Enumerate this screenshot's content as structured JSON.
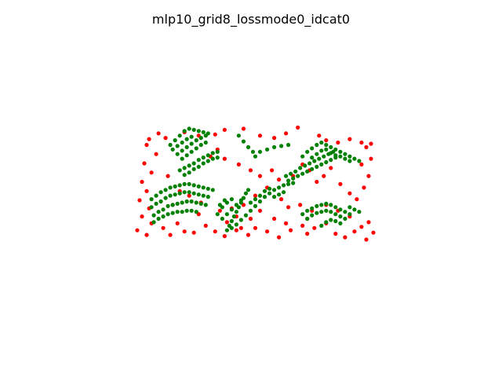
{
  "chart_data": {
    "type": "scatter",
    "title": "mlp10_grid8_lossmode0_idcat0",
    "xlabel": "",
    "ylabel": "",
    "axes_visible": false,
    "grid": false,
    "legend": "none",
    "xlim": [
      0,
      1
    ],
    "ylim": [
      0,
      1
    ],
    "series": [
      {
        "color": "#ff0000",
        "marker": "circle",
        "points": [
          [
            0.09,
            0.92
          ],
          [
            0.12,
            0.88
          ],
          [
            0.2,
            0.93
          ],
          [
            0.26,
            0.9
          ],
          [
            0.33,
            0.91
          ],
          [
            0.37,
            0.95
          ],
          [
            0.45,
            0.96
          ],
          [
            0.52,
            0.9
          ],
          [
            0.58,
            0.88
          ],
          [
            0.63,
            0.92
          ],
          [
            0.68,
            0.97
          ],
          [
            0.77,
            0.9
          ],
          [
            0.8,
            0.86
          ],
          [
            0.85,
            0.84
          ],
          [
            0.9,
            0.87
          ],
          [
            0.95,
            0.84
          ],
          [
            0.99,
            0.83
          ],
          [
            0.97,
            0.8
          ],
          [
            0.05,
            0.87
          ],
          [
            0.04,
            0.82
          ],
          [
            0.08,
            0.74
          ],
          [
            0.03,
            0.66
          ],
          [
            0.06,
            0.58
          ],
          [
            0.02,
            0.5
          ],
          [
            0.04,
            0.42
          ],
          [
            0.01,
            0.34
          ],
          [
            0.05,
            0.27
          ],
          [
            0.02,
            0.2
          ],
          [
            0.06,
            0.14
          ],
          [
            0.0,
            0.08
          ],
          [
            0.04,
            0.04
          ],
          [
            0.13,
            0.55
          ],
          [
            0.11,
            0.1
          ],
          [
            0.14,
            0.04
          ],
          [
            0.2,
            0.07
          ],
          [
            0.24,
            0.06
          ],
          [
            0.29,
            0.12
          ],
          [
            0.33,
            0.07
          ],
          [
            0.37,
            0.03
          ],
          [
            0.42,
            0.08
          ],
          [
            0.47,
            0.04
          ],
          [
            0.5,
            0.1
          ],
          [
            0.55,
            0.07
          ],
          [
            0.6,
            0.02
          ],
          [
            0.65,
            0.08
          ],
          [
            0.7,
            0.12
          ],
          [
            0.72,
            0.05
          ],
          [
            0.75,
            0.1
          ],
          [
            0.8,
            0.14
          ],
          [
            0.84,
            0.05
          ],
          [
            0.88,
            0.02
          ],
          [
            0.92,
            0.07
          ],
          [
            0.95,
            0.11
          ],
          [
            0.98,
            0.15
          ],
          [
            0.97,
            0.0
          ],
          [
            1.0,
            0.06
          ],
          [
            0.31,
            0.72
          ],
          [
            0.34,
            0.78
          ],
          [
            0.37,
            0.7
          ],
          [
            0.43,
            0.65
          ],
          [
            0.48,
            0.6
          ],
          [
            0.52,
            0.55
          ],
          [
            0.55,
            0.45
          ],
          [
            0.5,
            0.38
          ],
          [
            0.45,
            0.3
          ],
          [
            0.4,
            0.27
          ],
          [
            0.42,
            0.2
          ],
          [
            0.38,
            0.15
          ],
          [
            0.44,
            0.1
          ],
          [
            0.57,
            0.6
          ],
          [
            0.6,
            0.52
          ],
          [
            0.66,
            0.55
          ],
          [
            0.7,
            0.65
          ],
          [
            0.73,
            0.6
          ],
          [
            0.76,
            0.5
          ],
          [
            0.79,
            0.55
          ],
          [
            0.82,
            0.62
          ],
          [
            0.86,
            0.48
          ],
          [
            0.9,
            0.4
          ],
          [
            0.93,
            0.35
          ],
          [
            0.96,
            0.45
          ],
          [
            0.98,
            0.55
          ],
          [
            0.95,
            0.65
          ],
          [
            0.99,
            0.7
          ],
          [
            0.18,
            0.42
          ],
          [
            0.22,
            0.38
          ],
          [
            0.27,
            0.32
          ],
          [
            0.15,
            0.3
          ],
          [
            0.61,
            0.35
          ],
          [
            0.64,
            0.28
          ],
          [
            0.69,
            0.3
          ],
          [
            0.74,
            0.25
          ],
          [
            0.8,
            0.3
          ],
          [
            0.85,
            0.25
          ],
          [
            0.9,
            0.2
          ],
          [
            0.17,
            0.14
          ],
          [
            0.26,
            0.22
          ],
          [
            0.35,
            0.25
          ],
          [
            0.48,
            0.18
          ],
          [
            0.52,
            0.25
          ],
          [
            0.58,
            0.18
          ],
          [
            0.63,
            0.14
          ],
          [
            0.72,
            0.18
          ]
        ]
      },
      {
        "color": "#008000",
        "marker": "circle",
        "points": [
          [
            0.14,
            0.82
          ],
          [
            0.16,
            0.86
          ],
          [
            0.18,
            0.9
          ],
          [
            0.2,
            0.94
          ],
          [
            0.22,
            0.96
          ],
          [
            0.24,
            0.95
          ],
          [
            0.26,
            0.94
          ],
          [
            0.28,
            0.93
          ],
          [
            0.3,
            0.92
          ],
          [
            0.15,
            0.78
          ],
          [
            0.17,
            0.81
          ],
          [
            0.19,
            0.84
          ],
          [
            0.21,
            0.87
          ],
          [
            0.23,
            0.89
          ],
          [
            0.17,
            0.74
          ],
          [
            0.19,
            0.77
          ],
          [
            0.21,
            0.8
          ],
          [
            0.23,
            0.83
          ],
          [
            0.25,
            0.86
          ],
          [
            0.27,
            0.88
          ],
          [
            0.29,
            0.9
          ],
          [
            0.19,
            0.7
          ],
          [
            0.21,
            0.73
          ],
          [
            0.23,
            0.76
          ],
          [
            0.25,
            0.79
          ],
          [
            0.27,
            0.82
          ],
          [
            0.29,
            0.84
          ],
          [
            0.18,
            0.6
          ],
          [
            0.2,
            0.62
          ],
          [
            0.22,
            0.64
          ],
          [
            0.24,
            0.66
          ],
          [
            0.26,
            0.69
          ],
          [
            0.28,
            0.71
          ],
          [
            0.3,
            0.73
          ],
          [
            0.32,
            0.75
          ],
          [
            0.34,
            0.76
          ],
          [
            0.2,
            0.56
          ],
          [
            0.22,
            0.58
          ],
          [
            0.24,
            0.61
          ],
          [
            0.26,
            0.63
          ],
          [
            0.28,
            0.66
          ],
          [
            0.3,
            0.68
          ],
          [
            0.32,
            0.7
          ],
          [
            0.34,
            0.71
          ],
          [
            0.43,
            0.9
          ],
          [
            0.45,
            0.85
          ],
          [
            0.47,
            0.8
          ],
          [
            0.49,
            0.76
          ],
          [
            0.5,
            0.72
          ],
          [
            0.52,
            0.76
          ],
          [
            0.55,
            0.78
          ],
          [
            0.58,
            0.8
          ],
          [
            0.61,
            0.81
          ],
          [
            0.64,
            0.82
          ],
          [
            0.06,
            0.35
          ],
          [
            0.08,
            0.38
          ],
          [
            0.1,
            0.41
          ],
          [
            0.12,
            0.43
          ],
          [
            0.14,
            0.45
          ],
          [
            0.16,
            0.46
          ],
          [
            0.18,
            0.47
          ],
          [
            0.2,
            0.48
          ],
          [
            0.22,
            0.48
          ],
          [
            0.24,
            0.47
          ],
          [
            0.26,
            0.46
          ],
          [
            0.28,
            0.45
          ],
          [
            0.3,
            0.44
          ],
          [
            0.32,
            0.43
          ],
          [
            0.06,
            0.28
          ],
          [
            0.08,
            0.31
          ],
          [
            0.1,
            0.33
          ],
          [
            0.12,
            0.36
          ],
          [
            0.14,
            0.38
          ],
          [
            0.16,
            0.39
          ],
          [
            0.18,
            0.4
          ],
          [
            0.2,
            0.41
          ],
          [
            0.22,
            0.41
          ],
          [
            0.24,
            0.4
          ],
          [
            0.26,
            0.39
          ],
          [
            0.28,
            0.38
          ],
          [
            0.3,
            0.37
          ],
          [
            0.07,
            0.21
          ],
          [
            0.09,
            0.24
          ],
          [
            0.11,
            0.26
          ],
          [
            0.13,
            0.29
          ],
          [
            0.15,
            0.3
          ],
          [
            0.17,
            0.31
          ],
          [
            0.19,
            0.32
          ],
          [
            0.21,
            0.33
          ],
          [
            0.23,
            0.33
          ],
          [
            0.25,
            0.32
          ],
          [
            0.27,
            0.31
          ],
          [
            0.29,
            0.3
          ],
          [
            0.07,
            0.15
          ],
          [
            0.09,
            0.18
          ],
          [
            0.11,
            0.2
          ],
          [
            0.13,
            0.22
          ],
          [
            0.15,
            0.23
          ],
          [
            0.17,
            0.24
          ],
          [
            0.19,
            0.24
          ],
          [
            0.21,
            0.25
          ],
          [
            0.23,
            0.25
          ],
          [
            0.25,
            0.24
          ],
          [
            0.38,
            0.08
          ],
          [
            0.39,
            0.12
          ],
          [
            0.4,
            0.16
          ],
          [
            0.41,
            0.2
          ],
          [
            0.42,
            0.24
          ],
          [
            0.43,
            0.28
          ],
          [
            0.44,
            0.32
          ],
          [
            0.45,
            0.36
          ],
          [
            0.46,
            0.4
          ],
          [
            0.47,
            0.43
          ],
          [
            0.4,
            0.1
          ],
          [
            0.42,
            0.13
          ],
          [
            0.44,
            0.17
          ],
          [
            0.46,
            0.21
          ],
          [
            0.48,
            0.25
          ],
          [
            0.5,
            0.29
          ],
          [
            0.52,
            0.33
          ],
          [
            0.54,
            0.37
          ],
          [
            0.56,
            0.4
          ],
          [
            0.58,
            0.43
          ],
          [
            0.6,
            0.45
          ],
          [
            0.62,
            0.47
          ],
          [
            0.64,
            0.48
          ],
          [
            0.66,
            0.49
          ],
          [
            0.36,
            0.18
          ],
          [
            0.38,
            0.22
          ],
          [
            0.4,
            0.26
          ],
          [
            0.42,
            0.3
          ],
          [
            0.44,
            0.34
          ],
          [
            0.36,
            0.28
          ],
          [
            0.38,
            0.32
          ],
          [
            0.4,
            0.35
          ],
          [
            0.34,
            0.22
          ],
          [
            0.35,
            0.3
          ],
          [
            0.37,
            0.34
          ],
          [
            0.48,
            0.32
          ],
          [
            0.5,
            0.35
          ],
          [
            0.52,
            0.38
          ],
          [
            0.54,
            0.42
          ],
          [
            0.56,
            0.44
          ],
          [
            0.58,
            0.37
          ],
          [
            0.6,
            0.39
          ],
          [
            0.62,
            0.41
          ],
          [
            0.63,
            0.55
          ],
          [
            0.65,
            0.57
          ],
          [
            0.67,
            0.59
          ],
          [
            0.69,
            0.62
          ],
          [
            0.71,
            0.64
          ],
          [
            0.73,
            0.66
          ],
          [
            0.75,
            0.68
          ],
          [
            0.77,
            0.7
          ],
          [
            0.79,
            0.72
          ],
          [
            0.81,
            0.74
          ],
          [
            0.83,
            0.76
          ],
          [
            0.64,
            0.51
          ],
          [
            0.66,
            0.53
          ],
          [
            0.68,
            0.55
          ],
          [
            0.7,
            0.57
          ],
          [
            0.72,
            0.59
          ],
          [
            0.74,
            0.61
          ],
          [
            0.76,
            0.63
          ],
          [
            0.78,
            0.65
          ],
          [
            0.8,
            0.67
          ],
          [
            0.82,
            0.69
          ],
          [
            0.84,
            0.71
          ],
          [
            0.86,
            0.72
          ],
          [
            0.88,
            0.7
          ],
          [
            0.9,
            0.68
          ],
          [
            0.7,
            0.72
          ],
          [
            0.72,
            0.76
          ],
          [
            0.74,
            0.79
          ],
          [
            0.76,
            0.82
          ],
          [
            0.78,
            0.84
          ],
          [
            0.8,
            0.82
          ],
          [
            0.82,
            0.8
          ],
          [
            0.84,
            0.78
          ],
          [
            0.86,
            0.76
          ],
          [
            0.88,
            0.74
          ],
          [
            0.9,
            0.72
          ],
          [
            0.92,
            0.7
          ],
          [
            0.94,
            0.68
          ],
          [
            0.74,
            0.71
          ],
          [
            0.76,
            0.74
          ],
          [
            0.78,
            0.77
          ],
          [
            0.8,
            0.78
          ],
          [
            0.82,
            0.75
          ],
          [
            0.84,
            0.73
          ],
          [
            0.7,
            0.22
          ],
          [
            0.72,
            0.25
          ],
          [
            0.74,
            0.27
          ],
          [
            0.76,
            0.29
          ],
          [
            0.78,
            0.3
          ],
          [
            0.8,
            0.31
          ],
          [
            0.82,
            0.3
          ],
          [
            0.84,
            0.28
          ],
          [
            0.86,
            0.26
          ],
          [
            0.88,
            0.24
          ],
          [
            0.9,
            0.22
          ],
          [
            0.72,
            0.18
          ],
          [
            0.74,
            0.21
          ],
          [
            0.76,
            0.23
          ],
          [
            0.78,
            0.24
          ],
          [
            0.8,
            0.25
          ],
          [
            0.82,
            0.24
          ],
          [
            0.84,
            0.22
          ],
          [
            0.86,
            0.2
          ],
          [
            0.88,
            0.18
          ],
          [
            0.78,
            0.12
          ],
          [
            0.8,
            0.15
          ],
          [
            0.82,
            0.17
          ],
          [
            0.84,
            0.16
          ],
          [
            0.86,
            0.14
          ],
          [
            0.9,
            0.28
          ],
          [
            0.92,
            0.26
          ],
          [
            0.94,
            0.24
          ]
        ]
      }
    ]
  }
}
